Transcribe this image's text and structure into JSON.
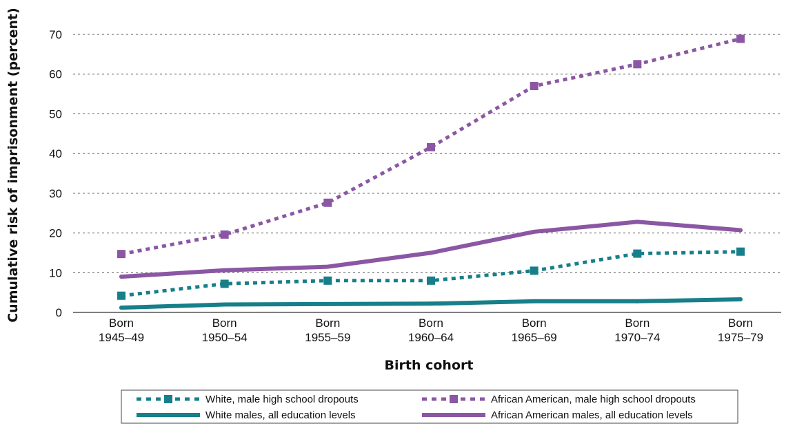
{
  "chart_data": {
    "type": "line",
    "title": "",
    "xlabel": "Birth cohort",
    "ylabel": "Cumulative risk of imprisonment (percent)",
    "ylim": [
      0,
      70
    ],
    "yticks": [
      0,
      10,
      20,
      30,
      40,
      50,
      60,
      70
    ],
    "grid": "horizontal dashed",
    "legend_position": "bottom",
    "categories": [
      [
        "Born",
        "1945–49"
      ],
      [
        "Born",
        "1950–54"
      ],
      [
        "Born",
        "1955–59"
      ],
      [
        "Born",
        "1960–64"
      ],
      [
        "Born",
        "1965–69"
      ],
      [
        "Born",
        "1970–74"
      ],
      [
        "Born",
        "1975–79"
      ]
    ],
    "series": [
      {
        "name": "White, male high school dropouts",
        "color": "#167f8a",
        "style": "dotted-square",
        "values": [
          4.2,
          7.2,
          8.0,
          8.0,
          10.5,
          14.8,
          15.3
        ]
      },
      {
        "name": "African American, male high school dropouts",
        "color": "#8b57a4",
        "style": "dotted-square",
        "values": [
          14.7,
          19.6,
          27.6,
          41.6,
          57.0,
          62.5,
          68.9
        ]
      },
      {
        "name": "White males, all education levels",
        "color": "#167f8a",
        "style": "solid",
        "values": [
          1.2,
          2.0,
          2.1,
          2.2,
          2.8,
          2.8,
          3.3
        ]
      },
      {
        "name": "African American males, all education levels",
        "color": "#8b57a4",
        "style": "solid",
        "values": [
          9.0,
          10.6,
          11.5,
          15.0,
          20.3,
          22.8,
          20.7
        ]
      }
    ]
  }
}
